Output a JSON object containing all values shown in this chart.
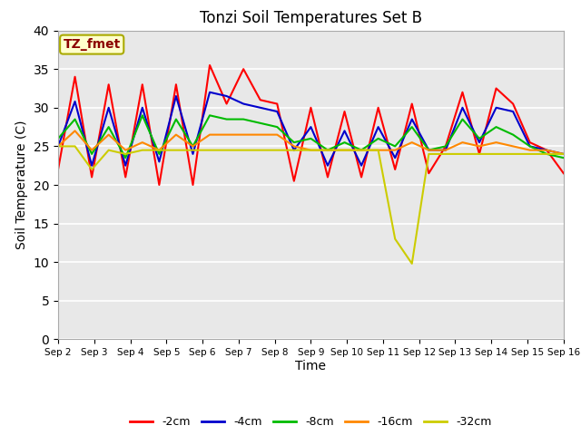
{
  "title": "Tonzi Soil Temperatures Set B",
  "xlabel": "Time",
  "ylabel": "Soil Temperature (C)",
  "ylim": [
    0,
    40
  ],
  "yticks": [
    0,
    5,
    10,
    15,
    20,
    25,
    30,
    35,
    40
  ],
  "bg_color": "#e8e8e8",
  "annotation_text": "TZ_fmet",
  "annotation_color": "#8b0000",
  "annotation_bg": "#ffffcc",
  "series_colors": {
    "-2cm": "#ff0000",
    "-4cm": "#0000cc",
    "-8cm": "#00bb00",
    "-16cm": "#ff8800",
    "-32cm": "#cccc00"
  },
  "x_tick_labels": [
    "Sep 2",
    "Sep 3",
    "Sep 4",
    "Sep 5",
    "Sep 6",
    "Sep 7",
    "Sep 8",
    "Sep 9",
    "Sep 10",
    "Sep 11",
    "Sep 12",
    "Sep 13",
    "Sep 14",
    "Sep 15",
    "Sep 16"
  ],
  "data": {
    "-2cm": [
      22.0,
      34.0,
      21.0,
      33.0,
      21.0,
      33.0,
      20.0,
      33.0,
      20.0,
      35.5,
      30.5,
      35.0,
      31.0,
      30.5,
      20.5,
      30.0,
      21.0,
      29.5,
      21.0,
      30.0,
      22.0,
      30.5,
      21.5,
      25.0,
      32.0,
      24.0,
      32.5,
      30.5,
      25.5,
      24.5,
      21.5
    ],
    "-4cm": [
      25.0,
      30.8,
      22.5,
      30.0,
      22.5,
      30.0,
      23.0,
      31.5,
      24.0,
      32.0,
      31.5,
      30.5,
      30.0,
      29.5,
      24.5,
      27.5,
      22.5,
      27.0,
      22.5,
      27.5,
      23.5,
      28.5,
      24.5,
      24.5,
      30.0,
      25.5,
      30.0,
      29.5,
      25.0,
      24.5,
      24.0
    ],
    "-8cm": [
      26.0,
      28.5,
      24.0,
      27.5,
      23.5,
      29.0,
      24.0,
      28.5,
      25.0,
      29.0,
      28.5,
      28.5,
      28.0,
      27.5,
      25.5,
      26.0,
      24.5,
      25.5,
      24.5,
      26.0,
      25.0,
      27.5,
      24.5,
      25.0,
      28.5,
      26.0,
      27.5,
      26.5,
      25.0,
      24.0,
      23.5
    ],
    "-16cm": [
      25.0,
      27.0,
      24.5,
      26.5,
      24.5,
      25.5,
      24.5,
      26.5,
      25.0,
      26.5,
      26.5,
      26.5,
      26.5,
      26.5,
      25.0,
      24.5,
      24.5,
      24.5,
      24.5,
      24.5,
      24.5,
      25.5,
      24.5,
      24.5,
      25.5,
      25.0,
      25.5,
      25.0,
      24.5,
      24.5,
      24.0
    ],
    "-32cm": [
      25.0,
      25.0,
      22.0,
      24.5,
      24.0,
      24.5,
      24.5,
      24.5,
      24.5,
      24.5,
      24.5,
      24.5,
      24.5,
      24.5,
      24.5,
      24.5,
      24.5,
      24.5,
      24.5,
      24.5,
      13.0,
      9.8,
      24.0,
      24.0,
      24.0,
      24.0,
      24.0,
      24.0,
      24.0,
      24.0,
      24.0
    ]
  },
  "figsize": [
    6.4,
    4.8
  ],
  "dpi": 100
}
